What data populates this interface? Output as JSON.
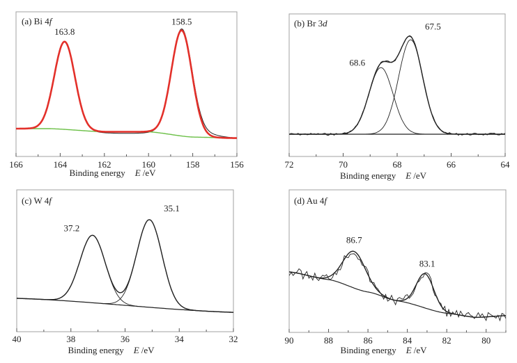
{
  "chart_data": [
    {
      "type": "line",
      "panel": "(a)",
      "title": "Bi 4f",
      "title_prefix": "(a) Bi 4",
      "title_italic": "f",
      "xlabel": "Binding energy",
      "xlabel_var": "E",
      "xlabel_unit": "/eV",
      "xlim": [
        166,
        156
      ],
      "xticks": [
        166,
        164,
        162,
        160,
        158,
        156
      ],
      "ylabel": "",
      "yticks": [],
      "peaks": [
        {
          "position": 163.8,
          "label": "163.8",
          "fwhm": 1.1,
          "height": 0.83
        },
        {
          "position": 158.5,
          "label": "158.5",
          "fwhm": 1.1,
          "height": 1.0
        }
      ],
      "series": [
        {
          "name": "Experimental",
          "color": "#222222"
        },
        {
          "name": "Fit envelope",
          "color": "#e3302a"
        },
        {
          "name": "Background",
          "color": "#6abf45"
        }
      ],
      "background": [
        [
          166,
          0.02
        ],
        [
          164.5,
          0.02
        ],
        [
          162,
          -0.01
        ],
        [
          160,
          -0.01
        ],
        [
          158,
          -0.06
        ],
        [
          156,
          -0.07
        ]
      ]
    },
    {
      "type": "line",
      "panel": "(b)",
      "title": "Br 3d",
      "title_prefix": "(b) Br 3",
      "title_italic": "d",
      "xlabel": "Binding energy",
      "xlabel_var": "E",
      "xlabel_unit": "/eV",
      "xlim": [
        72,
        64
      ],
      "xticks": [
        72,
        70,
        68,
        66,
        64
      ],
      "ylabel": "",
      "yticks": [],
      "peaks": [
        {
          "position": 68.6,
          "label": "68.6",
          "fwhm": 1.05,
          "height": 0.67
        },
        {
          "position": 67.5,
          "label": "67.5",
          "fwhm": 1.05,
          "height": 0.95
        }
      ],
      "series": [
        {
          "name": "Experimental",
          "color": "#222222"
        },
        {
          "name": "Fit envelope",
          "color": "#222222"
        },
        {
          "name": "Component 68.6",
          "color": "#222222"
        },
        {
          "name": "Component 67.5",
          "color": "#222222"
        },
        {
          "name": "Background",
          "color": "#222222"
        }
      ],
      "background": [
        [
          72,
          0
        ],
        [
          64,
          0
        ]
      ]
    },
    {
      "type": "line",
      "panel": "(c)",
      "title": "W 4f",
      "title_prefix": "(c) W 4",
      "title_italic": "f",
      "xlabel": "Binding energy",
      "xlabel_var": "E",
      "xlabel_unit": "/eV",
      "xlim": [
        40,
        32
      ],
      "xticks": [
        40,
        38,
        36,
        34,
        32
      ],
      "ylabel": "",
      "yticks": [],
      "peaks": [
        {
          "position": 37.2,
          "label": "37.2",
          "fwhm": 1.1,
          "height": 0.77
        },
        {
          "position": 35.1,
          "label": "35.1",
          "fwhm": 1.1,
          "height": 1.0
        }
      ],
      "series": [
        {
          "name": "Experimental",
          "color": "#222222"
        },
        {
          "name": "Fit envelope",
          "color": "#222222"
        },
        {
          "name": "Component 37.2",
          "color": "#222222"
        },
        {
          "name": "Component 35.1",
          "color": "#222222"
        },
        {
          "name": "Background",
          "color": "#222222"
        }
      ],
      "background": [
        [
          40,
          0.0
        ],
        [
          32,
          -0.16
        ]
      ]
    },
    {
      "type": "line",
      "panel": "(d)",
      "title": "Au 4f",
      "title_prefix": "(d) Au 4",
      "title_italic": "f",
      "xlabel": "Binding energy",
      "xlabel_var": "E",
      "xlabel_unit": "/eV",
      "xlim": [
        90,
        79
      ],
      "xticks": [
        90,
        88,
        86,
        84,
        82,
        80
      ],
      "ylabel": "",
      "yticks": [],
      "peaks": [
        {
          "position": 86.7,
          "label": "86.7",
          "fwhm": 1.35,
          "height": 0.62
        },
        {
          "position": 83.1,
          "label": "83.1",
          "fwhm": 1.05,
          "height": 0.58
        }
      ],
      "series": [
        {
          "name": "Experimental (noisy)",
          "color": "#222222"
        },
        {
          "name": "Fit envelope",
          "color": "#222222"
        },
        {
          "name": "Background",
          "color": "#222222"
        }
      ],
      "background": [
        [
          90,
          0.0
        ],
        [
          88,
          -0.13
        ],
        [
          86,
          -0.34
        ],
        [
          84.5,
          -0.49
        ],
        [
          82,
          -0.7
        ],
        [
          80.5,
          -0.77
        ],
        [
          79,
          -0.74
        ]
      ]
    }
  ]
}
